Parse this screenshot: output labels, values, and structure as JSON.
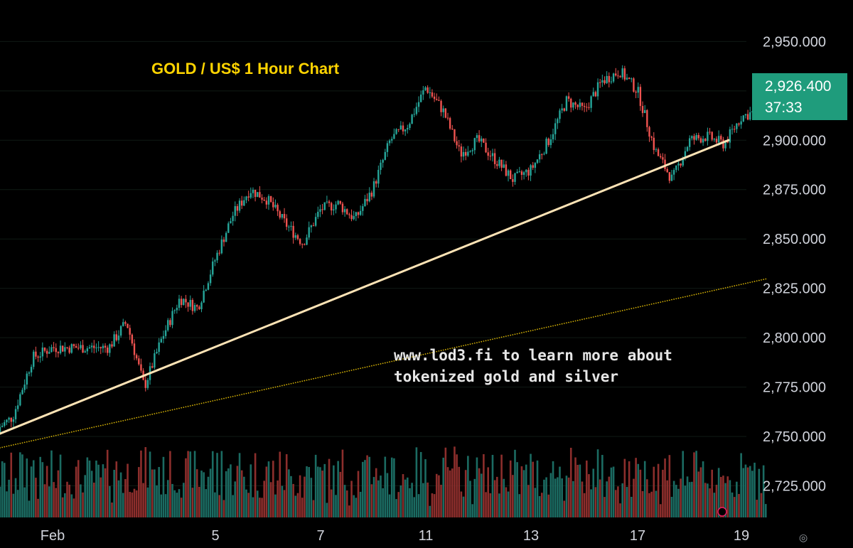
{
  "chart_data": {
    "type": "candlestick",
    "title": "GOLD / US$ 1 Hour Chart",
    "annotation": [
      "www.lod3.fi to learn more about",
      "tokenized gold and silver"
    ],
    "y_ticks": [
      "2,950.000",
      "2,925.000",
      "2,900.000",
      "2,875.000",
      "2,850.000",
      "2,825.000",
      "2,800.000",
      "2,775.000",
      "2,750.000",
      "2,725.000"
    ],
    "y_tick_values": [
      2950,
      2925,
      2900,
      2875,
      2850,
      2825,
      2800,
      2775,
      2750,
      2725
    ],
    "x_ticks": [
      "Feb",
      "5",
      "7",
      "11",
      "13",
      "17",
      "19"
    ],
    "ylim": [
      2709,
      2971
    ],
    "current_price": "2,926.400",
    "countdown": "37:33",
    "trendline": {
      "from": {
        "date": "Jan 31 00:00",
        "price": 2750
      },
      "to": {
        "date": "Feb 18 18:00",
        "price": 2900
      }
    },
    "price_path": [
      [
        "Jan 31 00:00",
        2752
      ],
      [
        "Jan 31 08:00",
        2760
      ],
      [
        "Jan 31 16:00",
        2790
      ],
      [
        "Feb 1 00:00",
        2795
      ],
      [
        "Feb 3 00:00",
        2795
      ],
      [
        "Feb 3 08:00",
        2808
      ],
      [
        "Feb 3 16:00",
        2775
      ],
      [
        "Feb 4 00:00",
        2800
      ],
      [
        "Feb 4 08:00",
        2820
      ],
      [
        "Feb 4 16:00",
        2815
      ],
      [
        "Feb 5 00:00",
        2840
      ],
      [
        "Feb 5 08:00",
        2862
      ],
      [
        "Feb 5 16:00",
        2875
      ],
      [
        "Feb 6 00:00",
        2870
      ],
      [
        "Feb 6 08:00",
        2858
      ],
      [
        "Feb 6 16:00",
        2848
      ],
      [
        "Feb 7 00:00",
        2865
      ],
      [
        "Feb 7 08:00",
        2868
      ],
      [
        "Feb 7 16:00",
        2860
      ],
      [
        "Feb 10 00:00",
        2875
      ],
      [
        "Feb 10 08:00",
        2900
      ],
      [
        "Feb 10 16:00",
        2908
      ],
      [
        "Feb 11 00:00",
        2927
      ],
      [
        "Feb 11 08:00",
        2915
      ],
      [
        "Feb 11 16:00",
        2893
      ],
      [
        "Feb 12 00:00",
        2900
      ],
      [
        "Feb 12 08:00",
        2890
      ],
      [
        "Feb 12 16:00",
        2880
      ],
      [
        "Feb 13 00:00",
        2885
      ],
      [
        "Feb 13 08:00",
        2900
      ],
      [
        "Feb 13 16:00",
        2920
      ],
      [
        "Feb 14 00:00",
        2915
      ],
      [
        "Feb 14 08:00",
        2930
      ],
      [
        "Feb 14 16:00",
        2935
      ],
      [
        "Feb 17 00:00",
        2925
      ],
      [
        "Feb 17 08:00",
        2895
      ],
      [
        "Feb 17 16:00",
        2880
      ],
      [
        "Feb 18 00:00",
        2900
      ],
      [
        "Feb 18 08:00",
        2902
      ],
      [
        "Feb 18 16:00",
        2898
      ],
      [
        "Feb 19 00:00",
        2912
      ],
      [
        "Feb 19 08:00",
        2915
      ],
      [
        "Feb 19 12:00",
        2926
      ]
    ],
    "colors": {
      "up": "#26a69a",
      "down": "#ef5350",
      "background": "#000000",
      "trendline": "#fde3b5",
      "title": "#ffd400",
      "stop_dots": "#d4b106",
      "price_tag": "#1f9c7c"
    }
  }
}
